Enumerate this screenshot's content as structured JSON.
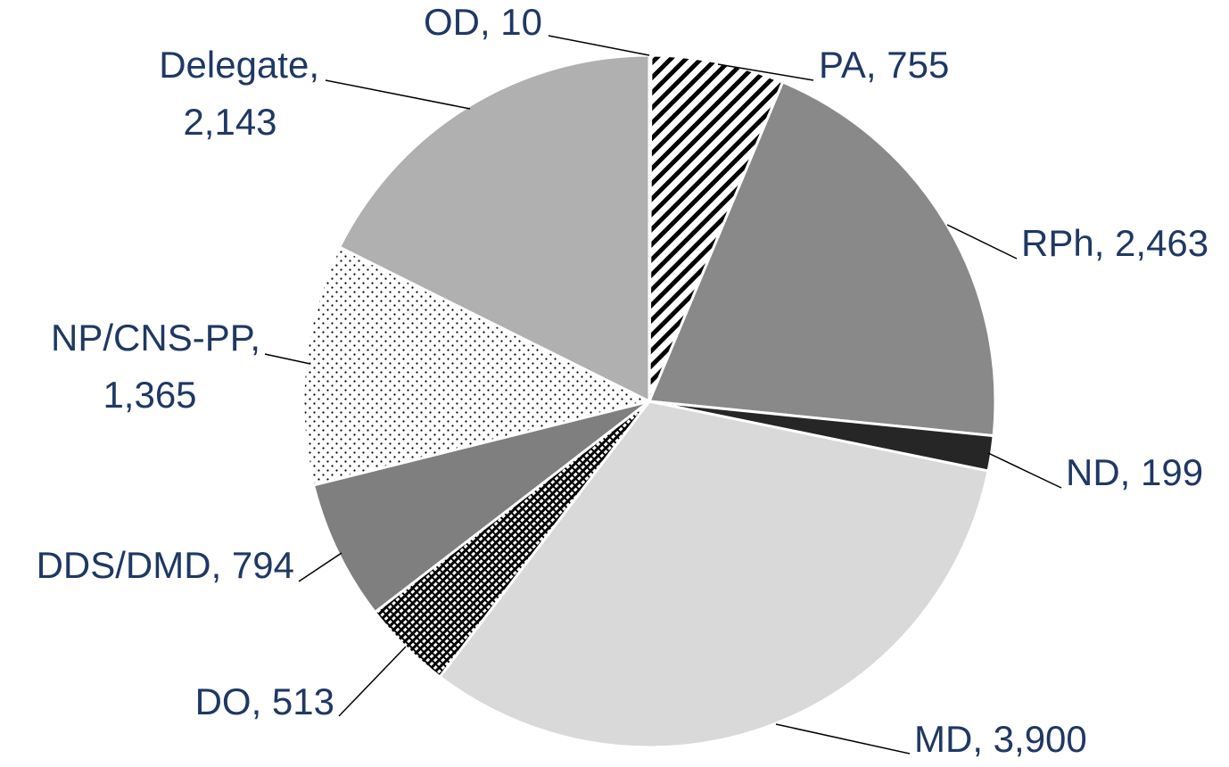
{
  "chart_data": {
    "type": "pie",
    "categories": [
      "OD",
      "PA",
      "RPh",
      "ND",
      "MD",
      "DO",
      "DDS/DMD",
      "NP/CNS-PP",
      "Delegate"
    ],
    "values": [
      10,
      755,
      2463,
      199,
      3900,
      513,
      794,
      1365,
      2143
    ],
    "value_labels": [
      "10",
      "755",
      "2,463",
      "199",
      "3,900",
      "513",
      "794",
      "1,365",
      "2,143"
    ],
    "label_separator": ", ",
    "colors": [
      "#ffffff",
      "#000000",
      "#898989",
      "#262626",
      "#d9d9d9",
      "#000000",
      "#7f7f7f",
      "#ffffff",
      "#b0b0b0"
    ],
    "patterns": [
      "solid",
      "diagonal",
      "solid",
      "solid",
      "solid",
      "crosshatch",
      "solid",
      "dots",
      "solid"
    ]
  }
}
